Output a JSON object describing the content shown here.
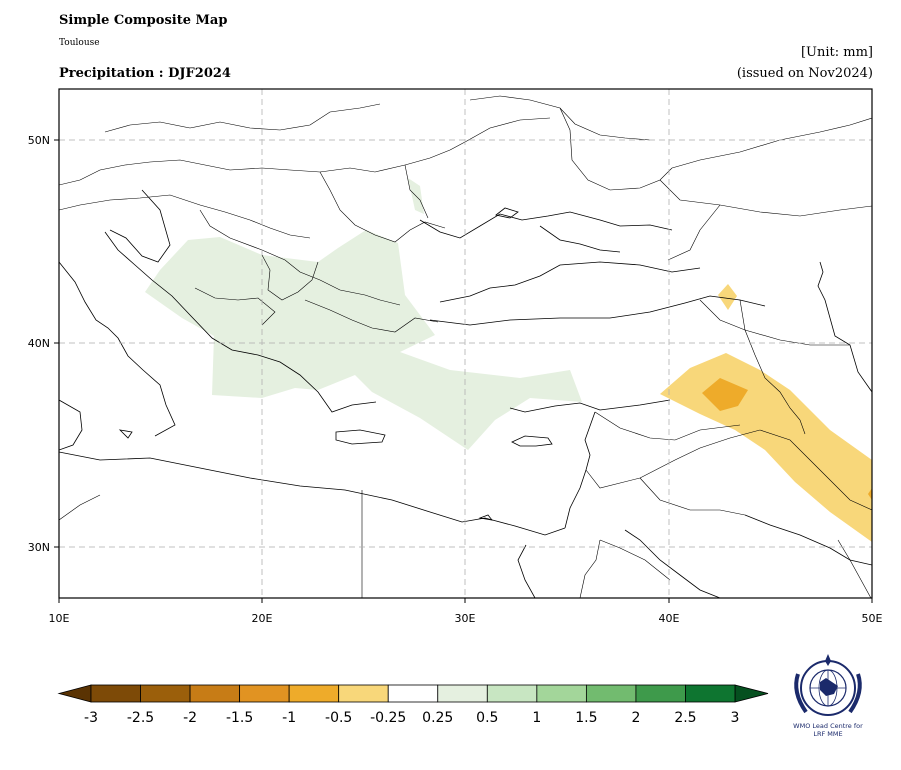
{
  "header": {
    "title": "Simple Composite Map",
    "subtitle": "Toulouse",
    "variable": "Precipitation : DJF2024",
    "unit": "[Unit: mm]",
    "issued": "(issued on Nov2024)"
  },
  "map": {
    "lon_labels": [
      "10E",
      "20E",
      "30E",
      "40E",
      "50E"
    ],
    "lat_labels": [
      "50N",
      "40N",
      "30N"
    ],
    "extent": {
      "lon": [
        10,
        50
      ],
      "lat": [
        27.5,
        52.5
      ]
    },
    "gridlines": true,
    "anomaly_regions": [
      {
        "region": "Balkans / Greece / Aegean",
        "category": "0.25 to 0.5",
        "color": "#e5f0e0"
      },
      {
        "region": "Iraq / NE Syria / SE Turkey",
        "category": "-0.5 to -0.25",
        "color": "#f8d77a"
      },
      {
        "region": "NE Syria / N Iraq core",
        "category": "-1 to -0.5",
        "color": "#eeab2a"
      },
      {
        "region": "NE Turkey",
        "category": "-0.5 to -0.25",
        "color": "#f8d77a"
      }
    ]
  },
  "colorbar": {
    "colors": [
      "#7d4a07",
      "#9b5f0b",
      "#c77c16",
      "#e19322",
      "#eeab2a",
      "#f8d77a",
      "#ffffff",
      "#e5f0e0",
      "#c8e6c2",
      "#a3d69a",
      "#72bb6f",
      "#3e9a4b",
      "#0e7530"
    ],
    "extend_low_color": "#5a3303",
    "extend_high_color": "#05501f",
    "ticks": [
      "-3",
      "-2.5",
      "-2",
      "-1.5",
      "-1",
      "-0.5",
      "-0.25",
      "0.25",
      "0.5",
      "1",
      "1.5",
      "2",
      "2.5",
      "3"
    ]
  },
  "logo": {
    "caption_line1": "WMO Lead Centre for",
    "caption_line2": "LRF MME"
  }
}
